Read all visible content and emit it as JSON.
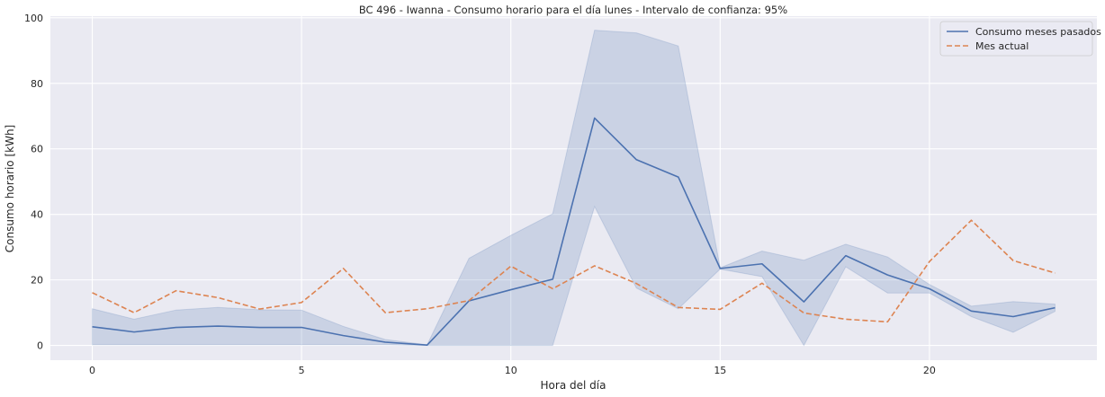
{
  "chart_data": {
    "type": "line",
    "title": "BC 496 - Iwanna - Consumo horario para el día lunes - Intervalo de confianza: 95%",
    "xlabel": "Hora del día",
    "ylabel": "Consumo horario [kWh]",
    "xlim": [
      -1,
      24
    ],
    "ylim": [
      -4.5,
      100.5
    ],
    "xticks": [
      0,
      5,
      10,
      15,
      20
    ],
    "yticks": [
      0,
      20,
      40,
      60,
      80,
      100
    ],
    "grid": true,
    "legend_position": "top-right",
    "x": [
      0,
      1,
      2,
      3,
      4,
      5,
      6,
      7,
      8,
      9,
      10,
      11,
      12,
      13,
      14,
      15,
      16,
      17,
      18,
      19,
      20,
      21,
      22,
      23
    ],
    "series": [
      {
        "name": "Consumo meses pasados",
        "color": "#4c72b0",
        "style": "solid",
        "values": [
          5.7,
          4.1,
          5.5,
          5.9,
          5.5,
          5.5,
          3.0,
          1.0,
          0.1,
          13.6,
          17.0,
          20.2,
          69.4,
          56.7,
          51.4,
          23.5,
          24.9,
          13.3,
          27.4,
          21.5,
          17.3,
          10.5,
          8.8,
          11.5
        ],
        "ci_lower": [
          0.2,
          0.2,
          0.2,
          0.2,
          0.2,
          0.2,
          0.2,
          0.2,
          0.0,
          0.0,
          0.0,
          0.0,
          42.4,
          17.5,
          11.2,
          23.3,
          21.0,
          0.0,
          24.0,
          16.0,
          16.0,
          8.8,
          4.0,
          10.4
        ],
        "ci_upper": [
          11.2,
          8.0,
          10.8,
          11.6,
          10.9,
          10.8,
          5.8,
          1.8,
          0.2,
          26.6,
          33.6,
          40.2,
          96.2,
          95.4,
          91.4,
          23.7,
          28.8,
          26.0,
          30.9,
          27.0,
          18.6,
          12.0,
          13.4,
          12.6
        ]
      },
      {
        "name": "Mes actual",
        "color": "#dd8452",
        "style": "dashed",
        "values": [
          16.1,
          10.0,
          16.7,
          14.6,
          11.1,
          13.1,
          23.5,
          10.0,
          11.2,
          13.7,
          24.2,
          17.3,
          24.3,
          18.9,
          11.6,
          11.0,
          19.0,
          9.9,
          8.0,
          7.2,
          25.6,
          38.2,
          25.9,
          22.1
        ]
      }
    ],
    "ci_color": "#4c72b0",
    "background": "#eaeaf2",
    "grid_color": "#ffffff"
  }
}
